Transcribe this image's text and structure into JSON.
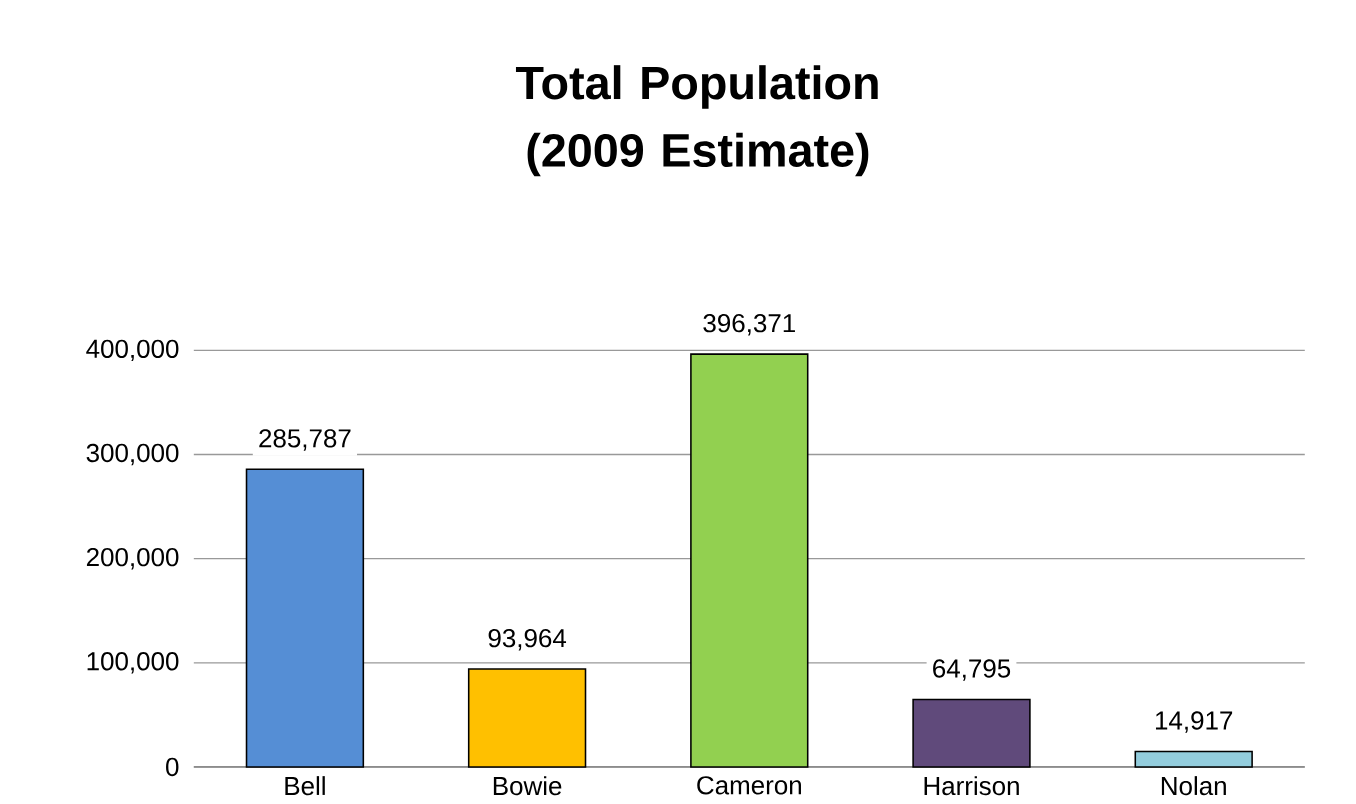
{
  "chart_data": {
    "type": "bar",
    "title": "Total Population (2009 Estimate)",
    "categories": [
      "Bell",
      "Bowie",
      "Cameron",
      "Harrison",
      "Nolan"
    ],
    "values": [
      285787,
      93964,
      396371,
      64795,
      14917
    ],
    "colors": [
      "#558ed5",
      "#ffc000",
      "#92d050",
      "#604a7b",
      "#93cddd"
    ],
    "value_labels": [
      "285,787",
      "93,964",
      "396,371",
      "64,795",
      "14,917"
    ],
    "ylim": [
      0,
      400000
    ],
    "yticks": [
      0,
      {
        "value": 100000,
        "label": "100,000"
      },
      {
        "value": 200000,
        "label": "200,000"
      },
      {
        "value": 300000,
        "label": "300,000"
      },
      {
        "value": 400000,
        "label": "400,000"
      }
    ],
    "grid": "y"
  }
}
